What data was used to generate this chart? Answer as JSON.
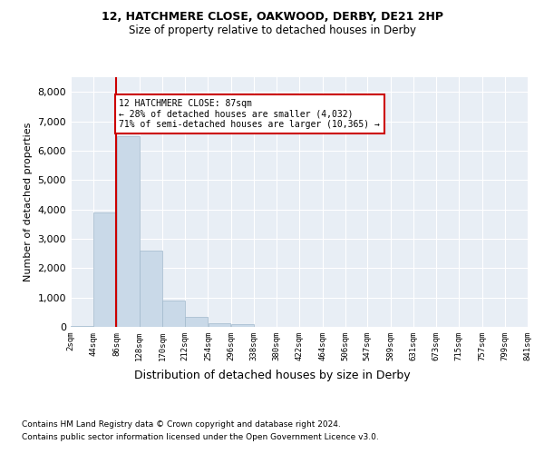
{
  "title1": "12, HATCHMERE CLOSE, OAKWOOD, DERBY, DE21 2HP",
  "title2": "Size of property relative to detached houses in Derby",
  "xlabel": "Distribution of detached houses by size in Derby",
  "ylabel": "Number of detached properties",
  "bar_values": [
    30,
    3900,
    6500,
    2600,
    900,
    350,
    130,
    80,
    0,
    0,
    0,
    0,
    0,
    0,
    0,
    0,
    0,
    0,
    0,
    0
  ],
  "bin_edges": [
    2,
    44,
    86,
    128,
    170,
    212,
    254,
    296,
    338,
    380,
    422,
    464,
    506,
    547,
    589,
    631,
    673,
    715,
    757,
    799,
    841
  ],
  "bin_labels": [
    "2sqm",
    "44sqm",
    "86sqm",
    "128sqm",
    "170sqm",
    "212sqm",
    "254sqm",
    "296sqm",
    "338sqm",
    "380sqm",
    "422sqm",
    "464sqm",
    "506sqm",
    "547sqm",
    "589sqm",
    "631sqm",
    "673sqm",
    "715sqm",
    "757sqm",
    "799sqm",
    "841sqm"
  ],
  "bar_color": "#c9d9e8",
  "bar_edge_color": "#a0b8cc",
  "property_line_x": 86,
  "annotation_title": "12 HATCHMERE CLOSE: 87sqm",
  "annotation_line1": "← 28% of detached houses are smaller (4,032)",
  "annotation_line2": "71% of semi-detached houses are larger (10,365) →",
  "annotation_box_color": "#ffffff",
  "annotation_box_edge_color": "#cc0000",
  "line_color": "#cc0000",
  "ylim": [
    0,
    8500
  ],
  "yticks": [
    0,
    1000,
    2000,
    3000,
    4000,
    5000,
    6000,
    7000,
    8000
  ],
  "footer1": "Contains HM Land Registry data © Crown copyright and database right 2024.",
  "footer2": "Contains public sector information licensed under the Open Government Licence v3.0.",
  "background_color": "#ffffff",
  "plot_bg_color": "#e8eef5"
}
